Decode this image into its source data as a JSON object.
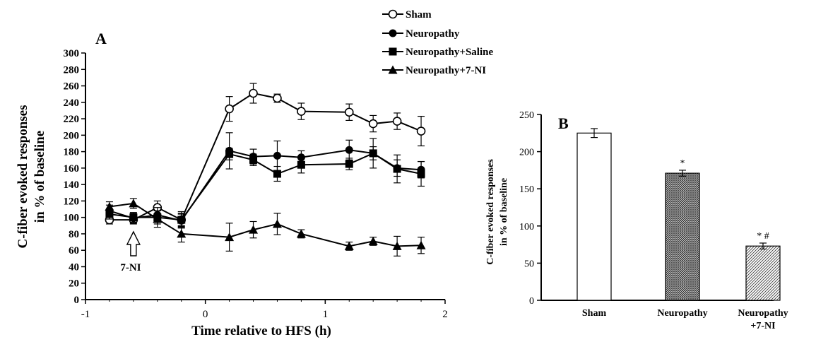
{
  "chart_data": [
    {
      "panel_label": "A",
      "type": "line",
      "xlabel": "Time relative to HFS (h)",
      "ylabel_line1": "C-fiber evoked responses",
      "ylabel_line2": "in % of baseline",
      "xlim": [
        -1,
        2
      ],
      "ylim": [
        0,
        300
      ],
      "x_ticks": [
        -1,
        0,
        1,
        2
      ],
      "y_ticks": [
        0,
        20,
        40,
        60,
        80,
        100,
        120,
        140,
        160,
        180,
        200,
        220,
        240,
        260,
        280,
        300
      ],
      "annotation": "7-NI",
      "annotation_x": -0.6,
      "series": [
        {
          "name": "Sham",
          "marker": "open-circle",
          "x": [
            -0.8,
            -0.6,
            -0.4,
            -0.2,
            0.2,
            0.4,
            0.6,
            0.8,
            1.2,
            1.4,
            1.6,
            1.8
          ],
          "y": [
            97,
            97,
            112,
            97,
            232,
            251,
            245,
            229,
            228,
            214,
            217,
            205
          ],
          "err": [
            5,
            5,
            8,
            10,
            15,
            12,
            5,
            10,
            10,
            10,
            10,
            18
          ]
        },
        {
          "name": "Neuropathy",
          "marker": "filled-circle",
          "x": [
            -0.8,
            -0.6,
            -0.4,
            -0.2,
            0.2,
            0.4,
            0.6,
            0.8,
            1.2,
            1.4,
            1.6,
            1.8
          ],
          "y": [
            108,
            99,
            103,
            96,
            181,
            174,
            175,
            173,
            182,
            178,
            160,
            158
          ],
          "err": [
            7,
            6,
            9,
            8,
            22,
            9,
            18,
            8,
            12,
            8,
            10,
            10
          ]
        },
        {
          "name": "Neuropathy+Saline",
          "marker": "filled-square",
          "x": [
            -0.8,
            -0.6,
            -0.4,
            -0.2,
            0.2,
            0.4,
            0.6,
            0.8,
            1.2,
            1.4,
            1.6,
            1.8
          ],
          "y": [
            104,
            100,
            100,
            97,
            177,
            170,
            153,
            164,
            165,
            178,
            159,
            153
          ],
          "err": [
            6,
            6,
            8,
            8,
            7,
            7,
            9,
            10,
            7,
            18,
            17,
            15
          ]
        },
        {
          "name": "Neuropathy+7-NI",
          "marker": "filled-triangle",
          "x": [
            -0.8,
            -0.6,
            -0.4,
            -0.2,
            0.2,
            0.4,
            0.6,
            0.8,
            1.2,
            1.4,
            1.6,
            1.8
          ],
          "y": [
            113,
            117,
            98,
            80,
            76,
            85,
            92,
            80,
            65,
            71,
            65,
            66
          ],
          "err": [
            6,
            6,
            10,
            10,
            17,
            10,
            13,
            5,
            5,
            5,
            12,
            10
          ]
        }
      ],
      "legend_placement": "top"
    },
    {
      "panel_label": "B",
      "type": "bar",
      "ylabel_line1": "C-fiber evoked responses",
      "ylabel_line2": "in % of baseline",
      "ylim": [
        0,
        250
      ],
      "y_ticks": [
        0,
        50,
        100,
        150,
        200,
        250
      ],
      "categories": [
        "Sham",
        "Neuropathy",
        "Neuropathy+7-NI"
      ],
      "category_labels": [
        [
          "Sham"
        ],
        [
          "Neuropathy"
        ],
        [
          "Neuropathy",
          "+7-NI"
        ]
      ],
      "values": [
        225,
        171,
        73
      ],
      "errors": [
        6,
        4,
        4
      ],
      "fills": [
        "none",
        "cross-hatch",
        "diagonal-hatch"
      ],
      "annotations": [
        "",
        "*",
        "* #"
      ]
    }
  ]
}
